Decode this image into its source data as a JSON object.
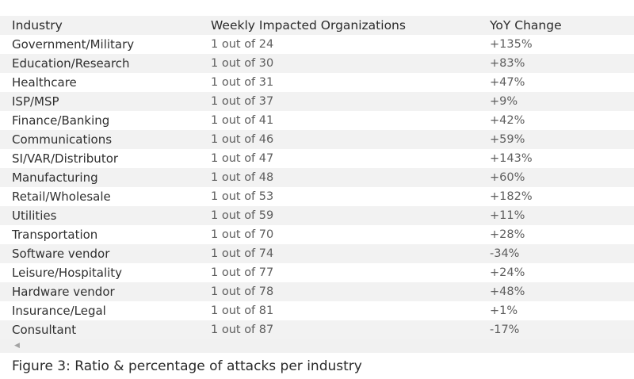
{
  "table": {
    "headers": [
      "Industry",
      "Weekly Impacted Organizations",
      "YoY Change"
    ],
    "rows": [
      [
        "Government/Military",
        "1 out of 24",
        "+135%"
      ],
      [
        "Education/Research",
        "1 out of 30",
        "+83%"
      ],
      [
        "Healthcare",
        "1 out of 31",
        "+47%"
      ],
      [
        "ISP/MSP",
        "1 out of 37",
        "+9%"
      ],
      [
        "Finance/Banking",
        "1 out of 41",
        "+42%"
      ],
      [
        "Communications",
        "1 out of 46",
        "+59%"
      ],
      [
        "SI/VAR/Distributor",
        "1 out of 47",
        "+143%"
      ],
      [
        "Manufacturing",
        "1 out of 48",
        "+60%"
      ],
      [
        "Retail/Wholesale",
        "1 out of 53",
        "+182%"
      ],
      [
        "Utilities",
        "1 out of 59",
        "+11%"
      ],
      [
        "Transportation",
        "1 out of 70",
        "+28%"
      ],
      [
        "Software vendor",
        "1 out of 74",
        "-34%"
      ],
      [
        "Leisure/Hospitality",
        "1 out of 77",
        "+24%"
      ],
      [
        "Hardware vendor",
        "1 out of 78",
        "+48%"
      ],
      [
        "Insurance/Legal",
        "1 out of 81",
        "+1%"
      ],
      [
        "Consultant",
        "1 out of 87",
        "-17%"
      ]
    ]
  },
  "scrollbar": {
    "left_arrow_icon": "scroll-left-arrow-icon"
  },
  "caption": "Figure 3: Ratio & percentage of attacks per industry"
}
